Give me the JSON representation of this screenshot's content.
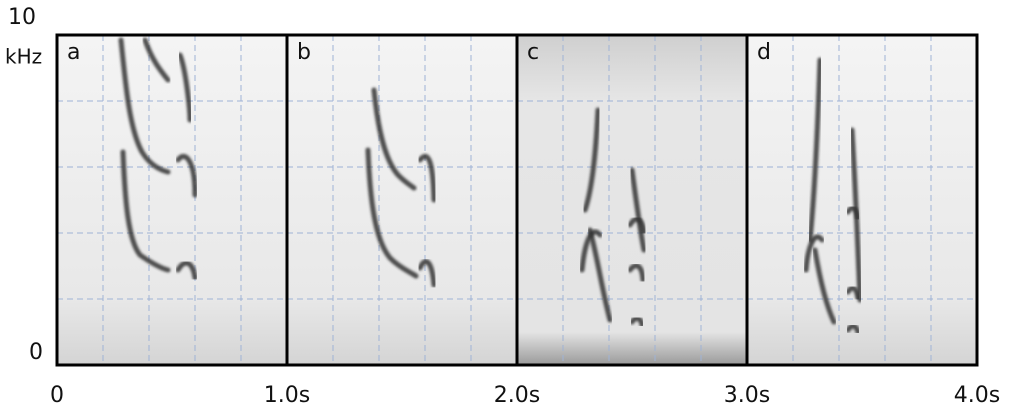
{
  "chart_data": {
    "type": "spectrogram",
    "ylabel": "kHz",
    "panels": [
      "a",
      "b",
      "c",
      "d"
    ],
    "xlim": [
      0,
      4
    ],
    "ylim": [
      0,
      10
    ],
    "xticks": [
      0,
      {
        "value": 1,
        "label": "1.0s"
      },
      {
        "value": 2,
        "label": "2.0s"
      },
      {
        "value": 3,
        "label": "3.0s"
      },
      {
        "value": 4,
        "label": "4.0s"
      }
    ],
    "yticks": [
      0,
      10
    ]
  }
}
